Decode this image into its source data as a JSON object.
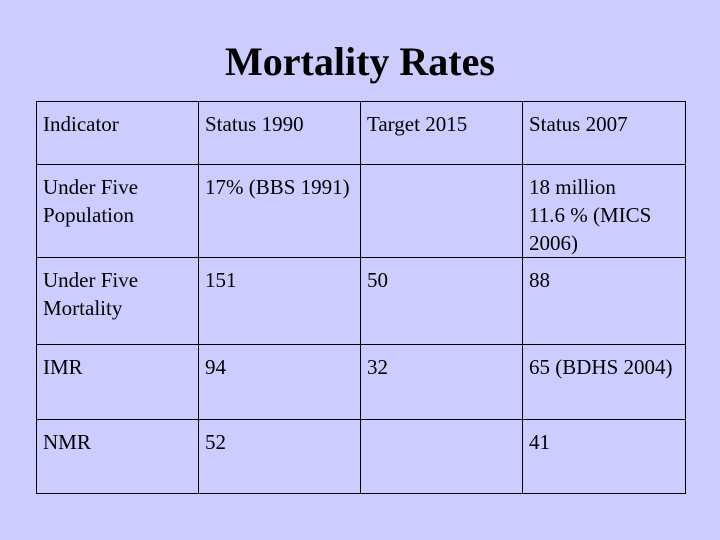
{
  "slide": {
    "title": "Mortality Rates"
  },
  "table": {
    "headers": [
      "Indicator",
      "Status 1990",
      "Target 2015",
      "Status 2007"
    ],
    "rows": [
      {
        "indicator": "Under Five Population",
        "status_1990": "17% (BBS 1991)",
        "target_2015": "",
        "status_2007": [
          "18 million",
          "11.6 % (MICS 2006)"
        ]
      },
      {
        "indicator": "Under Five Mortality",
        "status_1990": "151",
        "target_2015": "50",
        "status_2007": "88"
      },
      {
        "indicator": "IMR",
        "status_1990": "94",
        "target_2015": "32",
        "status_2007": "65 (BDHS 2004)"
      },
      {
        "indicator": "NMR",
        "status_1990": "52",
        "target_2015": "",
        "status_2007": "41"
      }
    ]
  }
}
